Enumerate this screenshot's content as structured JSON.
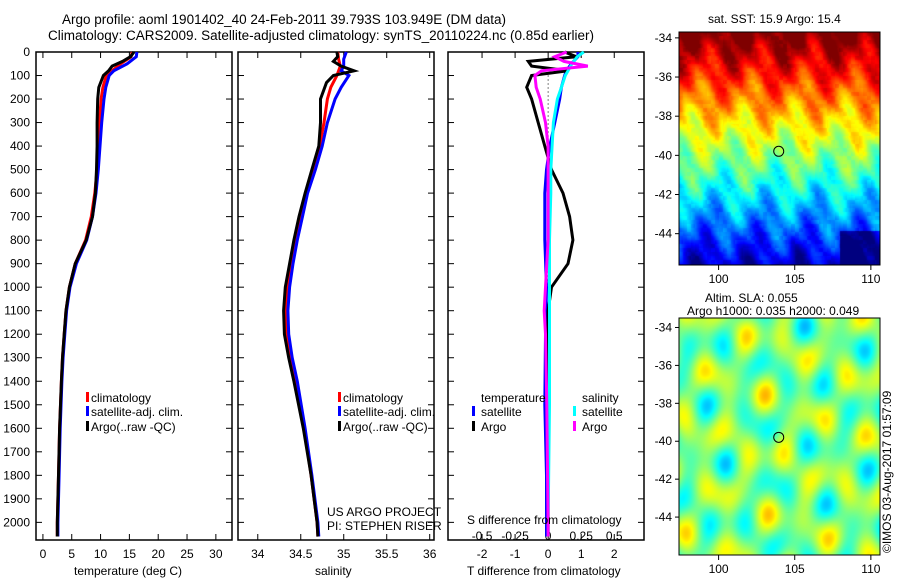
{
  "title_line1": "Argo profile: aoml 1901402_40 24-Feb-2011 39.793S 103.949E (DM data)",
  "title_line2": "Climatology: CARS2009. Satellite-adjusted climatology: synTS_20110224.nc (0.85d earlier)",
  "colors": {
    "climatology": "#ff0000",
    "satellite": "#0000ff",
    "argo": "#000000",
    "sal_satellite": "#00ffff",
    "sal_argo": "#ff00ff"
  },
  "chart_data": [
    {
      "type": "line",
      "id": "temperature",
      "xlabel": "temperature (deg C)",
      "ylabel": "",
      "xlim": [
        -1.2,
        32.8
      ],
      "ylim": [
        2075,
        0
      ],
      "xticks": [
        0,
        5,
        10,
        15,
        20,
        25,
        30
      ],
      "yticks": [
        0,
        100,
        200,
        300,
        400,
        500,
        600,
        700,
        800,
        900,
        1000,
        1100,
        1200,
        1300,
        1400,
        1500,
        1600,
        1700,
        1800,
        1900,
        2000
      ],
      "legend": [
        "climatology",
        "satellite-adj. clim.",
        "Argo(..raw -QC)"
      ],
      "legend_placement": "lower-center",
      "series": [
        {
          "name": "climatology",
          "color": "#ff0000",
          "depth": [
            0,
            20,
            50,
            80,
            100,
            150,
            200,
            300,
            400,
            500,
            600,
            700,
            800,
            900,
            1000,
            1100,
            1200,
            1300,
            1400,
            1600,
            1800,
            2000,
            2060
          ],
          "values": [
            15.5,
            15.3,
            13.5,
            12,
            11,
            10.4,
            10.1,
            9.8,
            9.6,
            9.4,
            9.0,
            8.4,
            7.4,
            5.6,
            4.6,
            4.0,
            3.7,
            3.4,
            3.2,
            2.9,
            2.7,
            2.5,
            2.5
          ]
        },
        {
          "name": "satellite-adj. clim.",
          "color": "#0000ff",
          "depth": [
            0,
            20,
            50,
            80,
            100,
            150,
            200,
            300,
            400,
            500,
            600,
            700,
            800,
            900,
            1000,
            1100,
            1200,
            1300,
            1400,
            1600,
            1800,
            2000,
            2060
          ],
          "values": [
            16.3,
            16.2,
            14.6,
            12.3,
            11.5,
            10.9,
            10.6,
            10.2,
            9.9,
            9.6,
            9.2,
            8.6,
            7.6,
            5.8,
            4.7,
            4.1,
            3.8,
            3.5,
            3.3,
            3.0,
            2.8,
            2.6,
            2.6
          ]
        },
        {
          "name": "Argo(..raw -QC)",
          "color": "#000000",
          "depth": [
            0,
            20,
            40,
            60,
            80,
            100,
            150,
            200,
            300,
            400,
            500,
            600,
            700,
            800,
            900,
            1000,
            1100,
            1200,
            1300,
            1400,
            1600,
            1800,
            2000,
            2060
          ],
          "values": [
            15.8,
            15.2,
            13.8,
            12.0,
            11.4,
            10.5,
            9.7,
            9.5,
            9.4,
            9.4,
            9.3,
            9.1,
            8.6,
            7.5,
            5.6,
            4.6,
            4.0,
            3.7,
            3.4,
            3.2,
            2.9,
            2.7,
            2.5,
            2.5
          ]
        }
      ],
      "annotation": ""
    },
    {
      "type": "line",
      "id": "salinity",
      "xlabel": "salinity",
      "xlim": [
        33.77,
        36.05
      ],
      "ylim": [
        2075,
        0
      ],
      "xticks": [
        34,
        34.5,
        35,
        35.5,
        36
      ],
      "legend": [
        "climatology",
        "satellite-adj. clim.",
        "Argo(..raw -QC)"
      ],
      "legend_placement": "lower-center",
      "series": [
        {
          "name": "climatology",
          "color": "#ff0000",
          "depth": [
            0,
            30,
            60,
            100,
            150,
            200,
            300,
            400,
            500,
            600,
            700,
            800,
            900,
            1000,
            1100,
            1200,
            1300,
            1400,
            1600,
            1800,
            2000,
            2060
          ],
          "values": [
            34.93,
            34.94,
            34.96,
            34.92,
            34.85,
            34.81,
            34.77,
            34.72,
            34.64,
            34.56,
            34.5,
            34.44,
            34.39,
            34.35,
            34.33,
            34.34,
            34.38,
            34.44,
            34.54,
            34.62,
            34.69,
            34.7
          ]
        },
        {
          "name": "satellite-adj. clim.",
          "color": "#0000ff",
          "depth": [
            0,
            30,
            60,
            80,
            100,
            150,
            200,
            300,
            400,
            500,
            600,
            700,
            800,
            900,
            1000,
            1100,
            1200,
            1300,
            1400,
            1600,
            1800,
            2000,
            2060
          ],
          "values": [
            35.03,
            35.0,
            35.0,
            34.97,
            35.06,
            34.97,
            34.9,
            34.81,
            34.75,
            34.67,
            34.58,
            34.52,
            34.46,
            34.41,
            34.37,
            34.35,
            34.36,
            34.4,
            34.46,
            34.55,
            34.63,
            34.7,
            34.71
          ]
        },
        {
          "name": "Argo(..raw -QC)",
          "color": "#000000",
          "depth": [
            0,
            20,
            40,
            60,
            80,
            100,
            130,
            200,
            300,
            400,
            500,
            600,
            700,
            800,
            900,
            1000,
            1100,
            1200,
            1300,
            1400,
            1600,
            1800,
            2000,
            2060
          ],
          "values": [
            34.92,
            34.93,
            34.88,
            34.97,
            35.12,
            34.88,
            34.8,
            34.73,
            34.73,
            34.71,
            34.63,
            34.55,
            34.48,
            34.42,
            34.37,
            34.32,
            34.3,
            34.31,
            34.36,
            34.42,
            34.53,
            34.62,
            34.69,
            34.7
          ]
        }
      ],
      "annotation": [
        "US ARGO PROJECT",
        "PI: STEPHEN RISER"
      ]
    },
    {
      "type": "line",
      "id": "difference",
      "xlabel": "T difference from climatology",
      "xlabel_top": "S difference from climatology",
      "xlim": [
        -3.03,
        2.9
      ],
      "ylim": [
        2075,
        0
      ],
      "xticks": [
        -2,
        -1,
        0,
        1,
        2
      ],
      "xticks_top": [
        -0.5,
        -0.25,
        0,
        0.25,
        0.5
      ],
      "xtick_top_labels": [
        "-0.5",
        "-0.25",
        "0",
        "0.25",
        "0.5"
      ],
      "legend_titles": [
        "temperature",
        "salinity"
      ],
      "legend": [
        "satellite",
        "Argo",
        "satellite",
        "Argo"
      ],
      "s_scale": 4,
      "series": [
        {
          "name": "temperature satellite",
          "color": "#0000ff",
          "kind": "T",
          "depth": [
            0,
            20,
            50,
            80,
            100,
            150,
            200,
            300,
            400,
            500,
            600,
            800,
            1000,
            1200,
            1500,
            1800,
            2000,
            2060
          ],
          "values": [
            0.9,
            0.9,
            0.7,
            0.55,
            0.5,
            0.4,
            0.35,
            0.2,
            0.05,
            -0.05,
            -0.1,
            -0.1,
            -0.05,
            -0.08,
            -0.1,
            -0.05,
            -0.05,
            -0.05
          ]
        },
        {
          "name": "temperature Argo",
          "color": "#000000",
          "kind": "T",
          "depth": [
            0,
            20,
            40,
            60,
            80,
            100,
            150,
            200,
            300,
            400,
            500,
            600,
            700,
            800,
            900,
            1000,
            1100,
            1300,
            1500,
            2000,
            2060
          ],
          "values": [
            0.5,
            0.85,
            -0.6,
            -0.5,
            0.6,
            -0.5,
            -0.65,
            -0.5,
            -0.3,
            -0.1,
            0.1,
            0.45,
            0.65,
            0.75,
            0.6,
            0.1,
            0.0,
            0.0,
            0.0,
            0.0,
            0.0
          ]
        },
        {
          "name": "salinity satellite",
          "color": "#00ffff",
          "kind": "S",
          "depth": [
            0,
            20,
            50,
            80,
            100,
            150,
            200,
            300,
            400,
            500,
            600,
            800,
            1000,
            1200,
            1500,
            2000,
            2060
          ],
          "values": [
            0.27,
            0.22,
            0.18,
            0.15,
            0.13,
            0.1,
            0.07,
            0.04,
            0.03,
            0.02,
            0.02,
            0.01,
            0.01,
            0.01,
            0.01,
            0.0,
            0.0
          ]
        },
        {
          "name": "salinity Argo",
          "color": "#ff00ff",
          "kind": "S",
          "depth": [
            0,
            20,
            40,
            60,
            80,
            100,
            150,
            200,
            300,
            400,
            500,
            600,
            800,
            1000,
            1100,
            1200,
            1500,
            2000,
            2060
          ],
          "values": [
            0.14,
            0.05,
            0.12,
            0.3,
            -0.05,
            -0.1,
            -0.09,
            -0.06,
            -0.02,
            0.0,
            0.0,
            0.0,
            0.0,
            -0.02,
            -0.03,
            -0.02,
            -0.01,
            0.0,
            0.0
          ]
        }
      ]
    },
    {
      "type": "heatmap",
      "id": "sst_map",
      "title": "sat. SST: 15.9 Argo: 15.4",
      "xlim": [
        97.4,
        110.6
      ],
      "ylim": [
        -45.6,
        -33.7
      ],
      "xticks": [
        100,
        105,
        110
      ],
      "yticks": [
        -34,
        -36,
        -38,
        -40,
        -42,
        -44
      ],
      "marker": {
        "lon": 103.949,
        "lat": -39.793
      }
    },
    {
      "type": "heatmap",
      "id": "sla_map",
      "title": "Altim. SLA: 0.055",
      "subtitle": "Argo h1000: 0.035 h2000: 0.049",
      "xlim": [
        97.4,
        110.6
      ],
      "ylim": [
        -46.0,
        -33.5
      ],
      "xticks": [
        100,
        105,
        110
      ],
      "yticks": [
        -34,
        -36,
        -38,
        -40,
        -42,
        -44
      ],
      "marker": {
        "lon": 103.949,
        "lat": -39.793
      }
    }
  ],
  "footer_vertical": "©IMOS 03-Aug-2017 01:57:09"
}
